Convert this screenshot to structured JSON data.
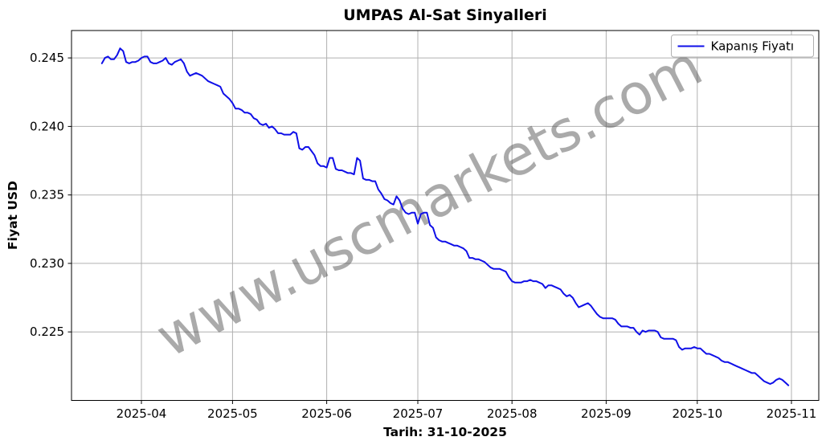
{
  "title": "UMPAS Al-Sat Sinyalleri",
  "watermark": "www.uscmarkets.com",
  "legend": {
    "label": "Kapanış Fiyatı"
  },
  "colors": {
    "line": "#0f0fe8",
    "grid": "#b0b0b0",
    "spine": "#000000",
    "watermark": "#555555",
    "legend_border": "#b0b0b0",
    "background": "#ffffff"
  },
  "chart_data": {
    "type": "line",
    "title": "UMPAS Al-Sat Sinyalleri",
    "xlabel": "Tarih: 31-10-2025",
    "ylabel": "Fiyat USD",
    "grid": true,
    "legend_position": "upper right",
    "xlim": [
      "2025-03-09",
      "2025-11-10"
    ],
    "ylim": [
      0.22,
      0.247
    ],
    "x_ticks": [
      {
        "label": "2025-04",
        "date": "2025-04-01"
      },
      {
        "label": "2025-05",
        "date": "2025-05-01"
      },
      {
        "label": "2025-06",
        "date": "2025-06-01"
      },
      {
        "label": "2025-07",
        "date": "2025-07-01"
      },
      {
        "label": "2025-08",
        "date": "2025-08-01"
      },
      {
        "label": "2025-09",
        "date": "2025-09-01"
      },
      {
        "label": "2025-10",
        "date": "2025-10-01"
      },
      {
        "label": "2025-11",
        "date": "2025-11-01"
      }
    ],
    "y_ticks": [
      {
        "value": 0.225,
        "label": "0.225"
      },
      {
        "value": 0.23,
        "label": "0.230"
      },
      {
        "value": 0.235,
        "label": "0.235"
      },
      {
        "value": 0.24,
        "label": "0.240"
      },
      {
        "value": 0.245,
        "label": "0.245"
      }
    ],
    "series": [
      {
        "name": "Kapanış Fiyatı",
        "color": "#0f0fe8",
        "start_date": "2025-03-19",
        "interval": "daily",
        "values": [
          0.2446,
          0.245,
          0.2451,
          0.2449,
          0.2449,
          0.2452,
          0.2457,
          0.2455,
          0.2447,
          0.2446,
          0.2447,
          0.2447,
          0.2448,
          0.245,
          0.2451,
          0.2451,
          0.2447,
          0.2446,
          0.2446,
          0.2447,
          0.2448,
          0.245,
          0.2446,
          0.2445,
          0.2447,
          0.2448,
          0.2449,
          0.2446,
          0.244,
          0.2437,
          0.2438,
          0.2439,
          0.2438,
          0.2437,
          0.2435,
          0.2433,
          0.2432,
          0.2431,
          0.243,
          0.2429,
          0.2424,
          0.2422,
          0.242,
          0.2417,
          0.2413,
          0.2413,
          0.2412,
          0.241,
          0.241,
          0.2409,
          0.2406,
          0.2405,
          0.2402,
          0.2401,
          0.2402,
          0.2399,
          0.24,
          0.2398,
          0.2395,
          0.2395,
          0.2394,
          0.2394,
          0.2394,
          0.2396,
          0.2395,
          0.2384,
          0.2383,
          0.2385,
          0.2385,
          0.2382,
          0.2379,
          0.2373,
          0.2371,
          0.2371,
          0.237,
          0.2377,
          0.2377,
          0.2369,
          0.2368,
          0.2368,
          0.2367,
          0.2366,
          0.2366,
          0.2365,
          0.2377,
          0.2375,
          0.2362,
          0.2361,
          0.2361,
          0.236,
          0.236,
          0.2354,
          0.2351,
          0.2347,
          0.2346,
          0.2344,
          0.2343,
          0.2349,
          0.2346,
          0.234,
          0.2337,
          0.2336,
          0.2337,
          0.2337,
          0.2329,
          0.2336,
          0.2337,
          0.2337,
          0.2328,
          0.2326,
          0.2319,
          0.2317,
          0.2316,
          0.2316,
          0.2315,
          0.2314,
          0.2313,
          0.2313,
          0.2312,
          0.2311,
          0.2309,
          0.2304,
          0.2304,
          0.2303,
          0.2303,
          0.2302,
          0.2301,
          0.2299,
          0.2297,
          0.2296,
          0.2296,
          0.2296,
          0.2295,
          0.2294,
          0.229,
          0.2287,
          0.2286,
          0.2286,
          0.2286,
          0.2287,
          0.2287,
          0.2288,
          0.2287,
          0.2287,
          0.2286,
          0.2285,
          0.2282,
          0.2284,
          0.2284,
          0.2283,
          0.2282,
          0.2281,
          0.2278,
          0.2276,
          0.2277,
          0.2275,
          0.2271,
          0.2268,
          0.2269,
          0.227,
          0.2271,
          0.2269,
          0.2266,
          0.2263,
          0.2261,
          0.226,
          0.226,
          0.226,
          0.226,
          0.2259,
          0.2256,
          0.2254,
          0.2254,
          0.2254,
          0.2253,
          0.2253,
          0.225,
          0.2248,
          0.2251,
          0.225,
          0.2251,
          0.2251,
          0.2251,
          0.225,
          0.2246,
          0.2245,
          0.2245,
          0.2245,
          0.2245,
          0.2244,
          0.2239,
          0.2237,
          0.2238,
          0.2238,
          0.2238,
          0.2239,
          0.2238,
          0.2238,
          0.2236,
          0.2234,
          0.2234,
          0.2233,
          0.2232,
          0.2231,
          0.2229,
          0.2228,
          0.2228,
          0.2227,
          0.2226,
          0.2225,
          0.2224,
          0.2223,
          0.2222,
          0.2221,
          0.222,
          0.222,
          0.2218,
          0.2216,
          0.2214,
          0.2213,
          0.2212,
          0.2213,
          0.2215,
          0.2216,
          0.2215,
          0.2213,
          0.2211
        ]
      }
    ]
  }
}
